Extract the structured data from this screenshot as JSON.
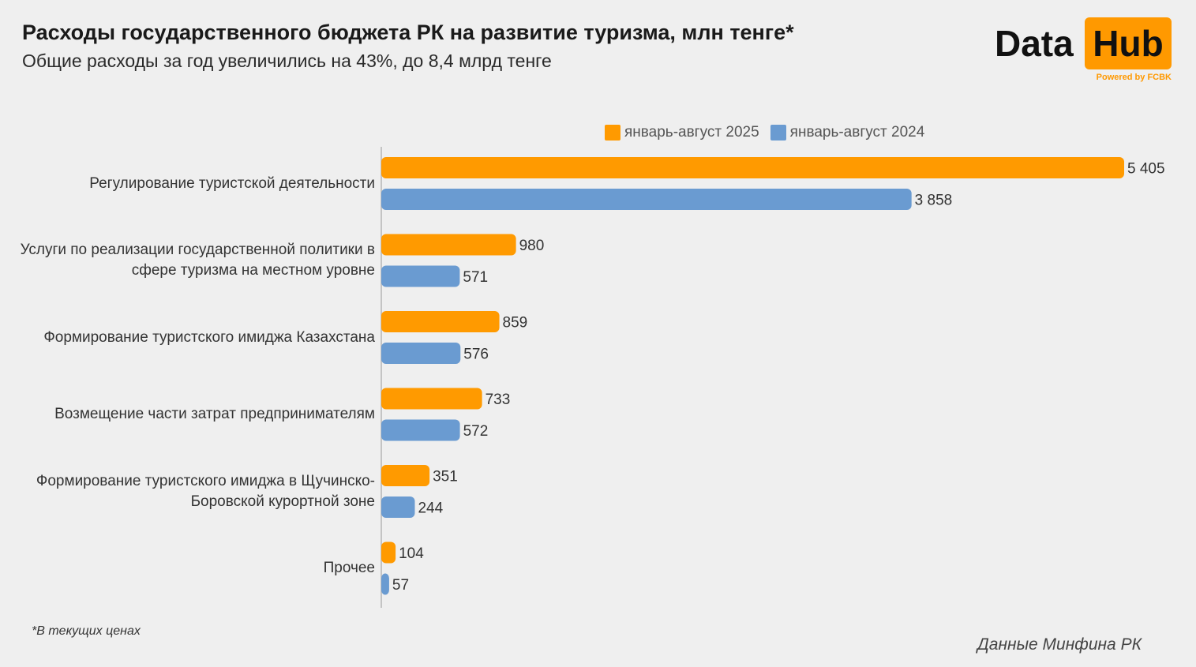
{
  "title": "Расходы государственного бюджета РК на развитие туризма, млн тенге*",
  "subtitle": "Общие расходы за год увеличились на 43%, до 8,4 млрд тенге",
  "logo": {
    "data": "Data",
    "hub": "Hub",
    "powered": "Powered by FCBK"
  },
  "footnote": "*В текущих ценах",
  "source": "Данные Минфина РК",
  "colors": {
    "s2025": "#ff9a00",
    "s2024": "#6a9bd1",
    "background": "#efefef"
  },
  "chart_data": {
    "type": "bar",
    "orientation": "horizontal",
    "legend_position": "top",
    "categories": [
      "Регулирование туристской деятельности",
      "Услуги по реализации государственной политики в сфере туризма на местном уровне",
      "Формирование туристского имиджа Казахстана",
      "Возмещение части затрат предпринимателям",
      "Формирование туристского имиджа в Щучинско-Боровской курортной зоне",
      "Прочее"
    ],
    "series": [
      {
        "name": "январь-август 2025",
        "values": [
          5405,
          980,
          859,
          733,
          351,
          104
        ],
        "labels": [
          "5 405",
          "980",
          "859",
          "733",
          "351",
          "104"
        ]
      },
      {
        "name": "январь-август 2024",
        "values": [
          3858,
          571,
          576,
          572,
          244,
          57
        ],
        "labels": [
          "3 858",
          "571",
          "576",
          "572",
          "244",
          "57"
        ]
      }
    ],
    "xlim": [
      0,
      5405
    ],
    "grid": false
  }
}
